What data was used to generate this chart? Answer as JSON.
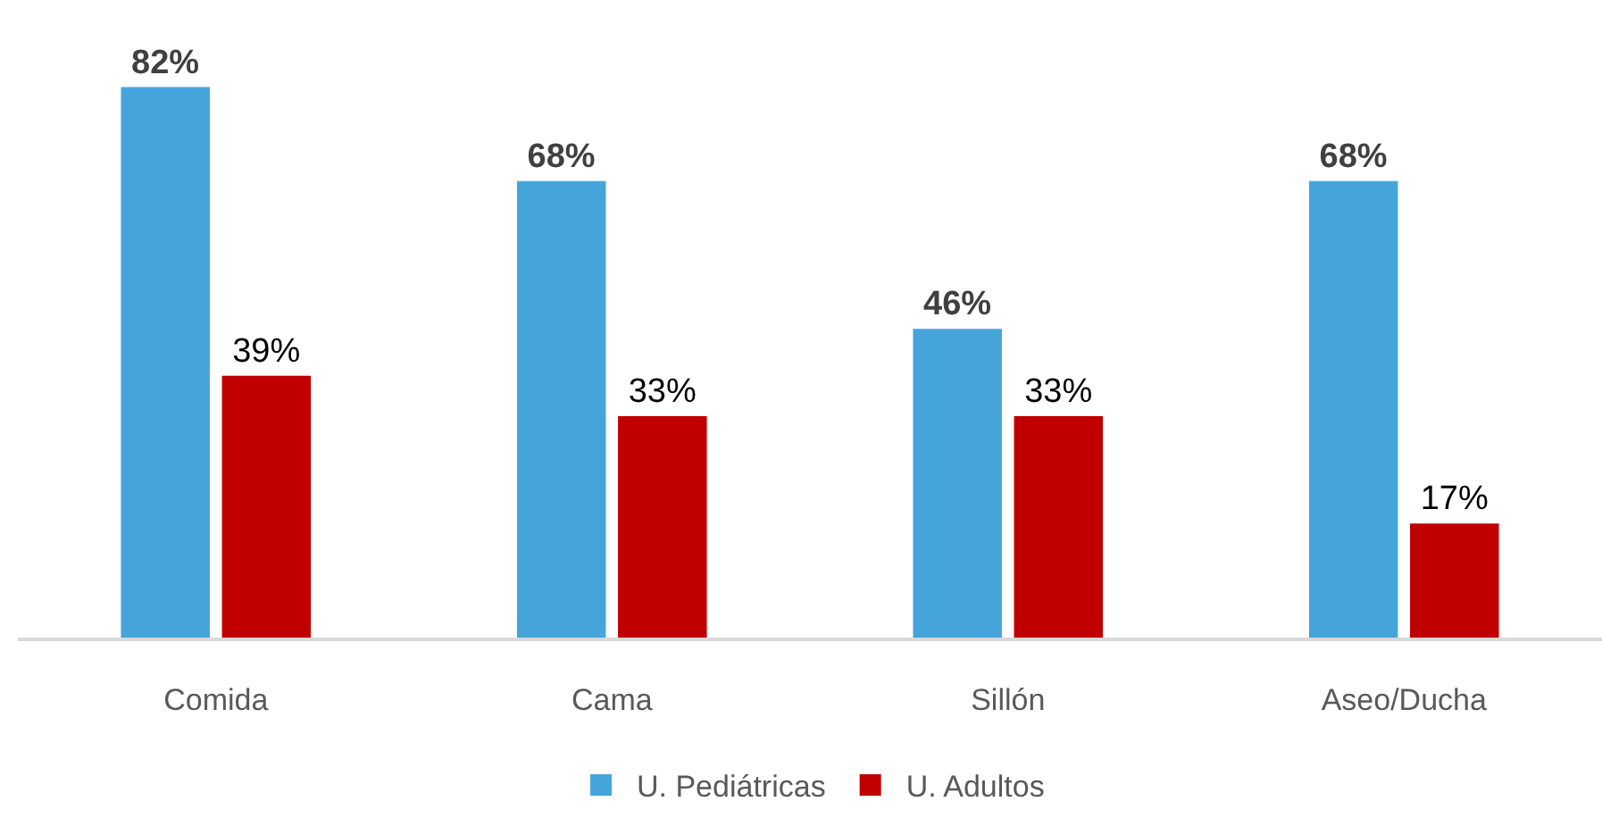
{
  "chart_data": {
    "type": "bar",
    "categories": [
      "Comida",
      "Cama",
      "Sillón",
      "Aseo/Ducha"
    ],
    "series": [
      {
        "name": "U. Pediátricas",
        "color": "#45a5da",
        "values": [
          82,
          68,
          46,
          68
        ],
        "value_labels": [
          "82%",
          "68%",
          "46%",
          "68%"
        ]
      },
      {
        "name": "U. Adultos",
        "color": "#c00000",
        "values": [
          39,
          33,
          33,
          17
        ],
        "value_labels": [
          "39%",
          "33%",
          "33%",
          "17%"
        ]
      }
    ],
    "legend": "bottom"
  }
}
